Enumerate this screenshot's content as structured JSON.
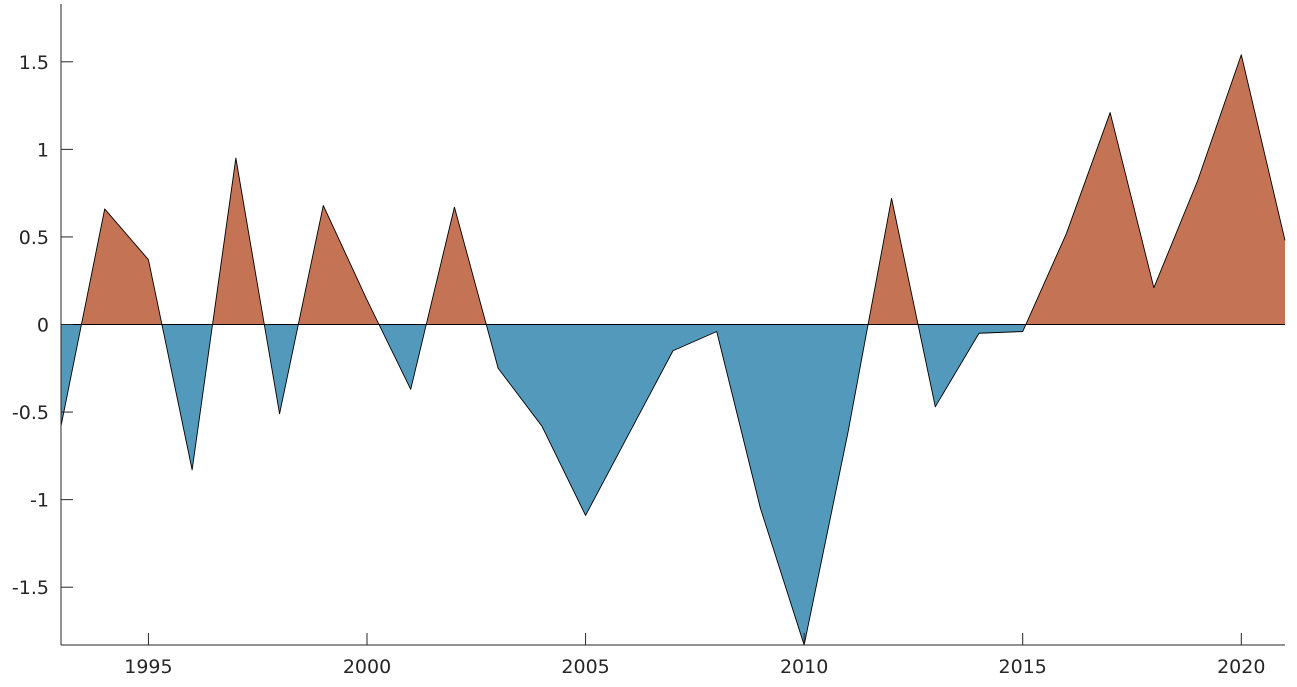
{
  "chart_data": {
    "type": "area",
    "title": "",
    "xlabel": "",
    "ylabel": "",
    "x": [
      1993,
      1994,
      1995,
      1996,
      1997,
      1998,
      1999,
      2000,
      2001,
      2002,
      2003,
      2004,
      2005,
      2006,
      2007,
      2008,
      2009,
      2010,
      2011,
      2012,
      2013,
      2014,
      2015,
      2016,
      2017,
      2018,
      2019,
      2020,
      2021
    ],
    "values": [
      -0.58,
      0.66,
      0.37,
      -0.83,
      0.95,
      -0.51,
      0.68,
      0.14,
      -0.37,
      0.67,
      -0.25,
      -0.58,
      -1.09,
      -0.62,
      -0.15,
      -0.04,
      -1.05,
      -1.83,
      -0.62,
      0.72,
      -0.47,
      -0.05,
      -0.04,
      0.52,
      1.21,
      0.21,
      0.82,
      1.54,
      0.48
    ],
    "xlim": [
      1993,
      2021
    ],
    "ylim": [
      -1.83,
      1.83
    ],
    "xticks": [
      "1995",
      "2000",
      "2005",
      "2010",
      "2015",
      "2020"
    ],
    "yticks": [
      "-1.5",
      "-1",
      "-0.5",
      "0",
      "0.5",
      "1",
      "1.5"
    ],
    "grid": false,
    "legend": "none",
    "colors": {
      "positive": "#c57355",
      "negative": "#5399bb",
      "outline": "#000000",
      "axis": "#262626"
    }
  }
}
